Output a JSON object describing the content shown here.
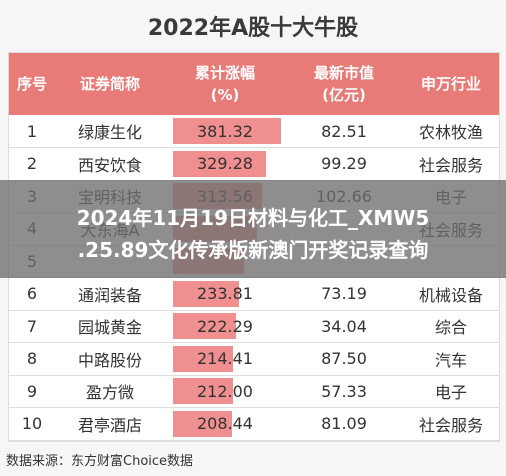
{
  "title": "2022年A股十大牛股",
  "headers": {
    "rank": "序号",
    "name": "证券简称",
    "gain": "累计涨幅\n(%)",
    "cap": "最新市值\n(亿元)",
    "industry": "申万行业"
  },
  "rows": [
    {
      "rank": "1",
      "name": "绿康生化",
      "gain": "381.32",
      "cap": "82.51",
      "industry": "农林牧渔"
    },
    {
      "rank": "2",
      "name": "西安饮食",
      "gain": "329.28",
      "cap": "99.29",
      "industry": "社会服务"
    },
    {
      "rank": "3",
      "name": "宝明科技",
      "gain": "313.56",
      "cap": "102.66",
      "industry": "电子"
    },
    {
      "rank": "4",
      "name": "大东海A",
      "gain": "",
      "cap": "",
      "industry": "社会服务"
    },
    {
      "rank": "5",
      "name": "",
      "gain": "",
      "cap": "",
      "industry": ""
    },
    {
      "rank": "6",
      "name": "通润装备",
      "gain": "233.81",
      "cap": "73.19",
      "industry": "机械设备"
    },
    {
      "rank": "7",
      "name": "园城黄金",
      "gain": "222.29",
      "cap": "34.04",
      "industry": "综合"
    },
    {
      "rank": "8",
      "name": "中路股份",
      "gain": "214.41",
      "cap": "87.50",
      "industry": "汽车"
    },
    {
      "rank": "9",
      "name": "盈方微",
      "gain": "212.00",
      "cap": "57.33",
      "industry": "电子"
    },
    {
      "rank": "10",
      "name": "君亭酒店",
      "gain": "208.44",
      "cap": "81.09",
      "industry": "社会服务"
    }
  ],
  "gain_bar_fractions": [
    1.0,
    0.86,
    0.82,
    0.78,
    0.66,
    0.61,
    0.58,
    0.56,
    0.56,
    0.55
  ],
  "overlay": {
    "line1": "2024年11月19日材料与化工_XMW5",
    "line2": ".25.89文化传承版新澳门开奖记录查询"
  },
  "source": "数据来源：东方财富Choice数据",
  "colors": {
    "header": "#e87b78",
    "bar": "#ef8f8f"
  }
}
